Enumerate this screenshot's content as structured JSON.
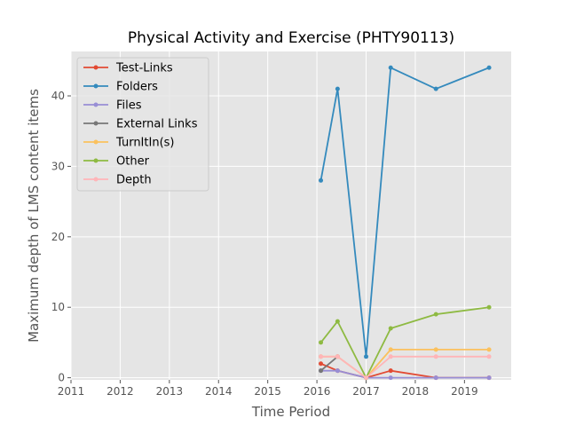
{
  "chart_data": {
    "type": "line",
    "title": "Physical Activity and Exercise (PHTY90113)",
    "xlabel": "Time Period",
    "ylabel": "Maximum depth of LMS content items",
    "xlim": [
      2011.0,
      2019.95
    ],
    "ylim": [
      -0.3,
      46.3
    ],
    "xticks": [
      2011,
      2012,
      2013,
      2014,
      2015,
      2016,
      2017,
      2018,
      2019
    ],
    "xtick_labels": [
      "2011",
      "2012",
      "2013",
      "2014",
      "2015",
      "2016",
      "2017",
      "2018",
      "2019"
    ],
    "yticks": [
      0,
      10,
      20,
      30,
      40
    ],
    "ytick_labels": [
      "0",
      "10",
      "20",
      "30",
      "40"
    ],
    "grid": true,
    "legend_position": "top-left",
    "background": "#e5e5e5",
    "series": [
      {
        "name": "Test-Links",
        "color": "#e24a33",
        "x": [
          2016.08,
          2016.42,
          2017.0,
          2017.5,
          2018.42,
          2019.5
        ],
        "y": [
          2,
          1,
          0,
          1,
          0,
          0
        ]
      },
      {
        "name": "Folders",
        "color": "#348abd",
        "x": [
          2016.08,
          2016.42,
          2017.0,
          2017.5,
          2018.42,
          2019.5
        ],
        "y": [
          28,
          41,
          3,
          44,
          41,
          44
        ]
      },
      {
        "name": "Files",
        "color": "#988ed5",
        "x": [
          2016.08,
          2016.42,
          2017.0,
          2017.5,
          2018.42,
          2019.5
        ],
        "y": [
          1,
          1,
          0,
          0,
          0,
          0
        ]
      },
      {
        "name": "External Links",
        "color": "#777777",
        "x": [
          2016.08,
          2016.42
        ],
        "y": [
          1,
          3
        ]
      },
      {
        "name": "TurnItIn(s)",
        "color": "#fbc15e",
        "x": [
          2016.08,
          2016.42,
          2017.0,
          2017.5,
          2018.42,
          2019.5
        ],
        "y": [
          3,
          3,
          0,
          4,
          4,
          4
        ]
      },
      {
        "name": "Other",
        "color": "#8eba42",
        "x": [
          2016.08,
          2016.42,
          2017.0,
          2017.5,
          2018.42,
          2019.5
        ],
        "y": [
          5,
          8,
          0,
          7,
          9,
          10
        ]
      },
      {
        "name": "Depth",
        "color": "#ffb5b8",
        "x": [
          2016.08,
          2016.42,
          2017.0,
          2017.5,
          2018.42,
          2019.5
        ],
        "y": [
          3,
          3,
          0,
          3,
          3,
          3
        ]
      }
    ]
  }
}
